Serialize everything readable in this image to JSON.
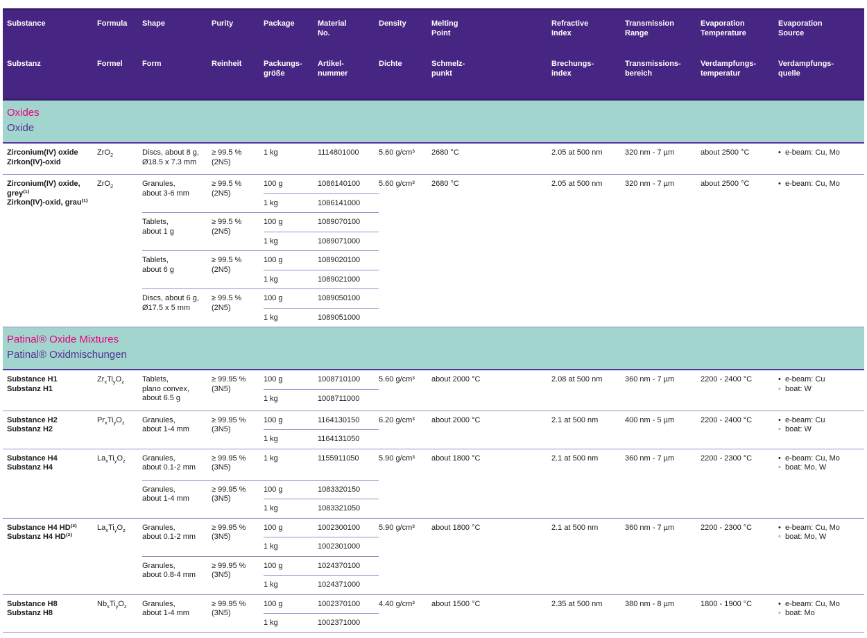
{
  "colors": {
    "header_bg": "#472582",
    "header_border": "#3a1e6e",
    "section_bg": "#a3d5cf",
    "section_title_en": "#e6007e",
    "section_title_de": "#503291",
    "row_line": "#a287c8",
    "section_line": "#5935a3",
    "header_text": "#ffffff",
    "body_text": "#1a1a1a"
  },
  "header": {
    "columns": [
      {
        "id": "substance",
        "w": "w-substance",
        "en": [
          "Substance"
        ],
        "de": [
          "Substanz"
        ]
      },
      {
        "id": "formula",
        "w": "w-formula",
        "en": [
          "Formula"
        ],
        "de": [
          "Formel"
        ]
      },
      {
        "id": "shape",
        "w": "w-shape",
        "en": [
          "Shape"
        ],
        "de": [
          "Form"
        ]
      },
      {
        "id": "purity",
        "w": "w-purity",
        "en": [
          "Purity"
        ],
        "de": [
          "Reinheit"
        ]
      },
      {
        "id": "package",
        "w": "w-size",
        "en": [
          "Package"
        ],
        "de": [
          "Packungs-",
          "größe"
        ]
      },
      {
        "id": "material-no",
        "w": "w-no",
        "en": [
          "Material",
          "No."
        ],
        "de": [
          "Artikel-",
          "nummer"
        ]
      },
      {
        "id": "density",
        "w": "w-density",
        "en": [
          "Density"
        ],
        "de": [
          "Dichte"
        ]
      },
      {
        "id": "melting-point",
        "w": "w-melting",
        "en": [
          "Melting",
          "Point"
        ],
        "de": [
          "Schmelz-",
          "punkt"
        ]
      },
      {
        "id": "refractive-index",
        "w": "w-refr",
        "en": [
          "Refractive",
          "Index"
        ],
        "de": [
          "Brechungs-",
          "index"
        ]
      },
      {
        "id": "transmission-range",
        "w": "w-trans",
        "en": [
          "Transmission",
          "Range"
        ],
        "de": [
          "Transmissions-",
          "bereich"
        ]
      },
      {
        "id": "evaporation-temperature",
        "w": "w-evapt",
        "en": [
          "Evaporation",
          "Temperature"
        ],
        "de": [
          "Verdampfungs-",
          "temperatur"
        ]
      },
      {
        "id": "evaporation-source",
        "w": "w-evaps",
        "en": [
          "Evaporation",
          "Source"
        ],
        "de": [
          "Verdampfungs-",
          "quelle"
        ]
      }
    ]
  },
  "sections": [
    {
      "title_en": "Oxides",
      "title_de": "Oxide",
      "rows": [
        {
          "name_en": "Zirconium(IV) oxide",
          "name_de": "Zirkon(IV)-oxid",
          "formula": [
            {
              "t": "ZrO",
              "s": "2"
            }
          ],
          "groups": [
            {
              "shape": [
                "Discs, about 8 g,",
                "Ø18.5 x 7.3 mm"
              ],
              "purity": [
                "≥ 99.5 %",
                "(2N5)"
              ],
              "packages": [
                {
                  "size": "1 kg",
                  "no": "1114801000"
                }
              ]
            }
          ],
          "density": "5.60 g/cm³",
          "melting": "2680 °C",
          "refractive": "2.05 at 500 nm",
          "transmission": "320 nm - 7 µm",
          "evap_temp": "about 2500 °C",
          "sources": [
            {
              "b": "•",
              "t": "e-beam: Cu, Mo"
            }
          ]
        },
        {
          "name_en": "Zirconium(IV) oxide, grey⁽¹⁾",
          "name_de": "Zirkon(IV)-oxid, grau⁽¹⁾",
          "formula": [
            {
              "t": "ZrO",
              "s": "2"
            }
          ],
          "groups": [
            {
              "shape": [
                "Granules,",
                "about 3-6 mm"
              ],
              "purity": [
                "≥ 99.5 %",
                "(2N5)"
              ],
              "packages": [
                {
                  "size": "100 g",
                  "no": "1086140100"
                },
                {
                  "size": "1 kg",
                  "no": "1086141000"
                }
              ]
            },
            {
              "shape": [
                "Tablets,",
                "about 1 g"
              ],
              "purity": [
                "≥ 99.5 %",
                "(2N5)"
              ],
              "packages": [
                {
                  "size": "100 g",
                  "no": "1089070100"
                },
                {
                  "size": "1 kg",
                  "no": "1089071000"
                }
              ]
            },
            {
              "shape": [
                "Tablets,",
                "about 6 g"
              ],
              "purity": [
                "≥ 99.5 %",
                "(2N5)"
              ],
              "packages": [
                {
                  "size": "100 g",
                  "no": "1089020100"
                },
                {
                  "size": "1 kg",
                  "no": "1089021000"
                }
              ]
            },
            {
              "shape": [
                "Discs, about 6 g,",
                "Ø17.5 x 5 mm"
              ],
              "purity": [
                "≥ 99.5 %",
                "(2N5)"
              ],
              "packages": [
                {
                  "size": "100 g",
                  "no": "1089050100"
                },
                {
                  "size": "1 kg",
                  "no": "1089051000"
                }
              ]
            }
          ],
          "density": "5.60 g/cm³",
          "melting": "2680 °C",
          "refractive": "2.05 at 500 nm",
          "transmission": "320 nm - 7 µm",
          "evap_temp": "about 2500 °C",
          "sources": [
            {
              "b": "•",
              "t": "e-beam: Cu, Mo"
            }
          ]
        }
      ]
    },
    {
      "title_en": "Patinal® Oxide Mixtures",
      "title_de": "Patinal® Oxidmischungen",
      "rows": [
        {
          "name_en": "Substance H1",
          "name_de": "Substanz H1",
          "formula": [
            {
              "t": "Zr",
              "s": "x"
            },
            {
              "t": "Ti",
              "s": "y"
            },
            {
              "t": "O",
              "s": "z"
            }
          ],
          "groups": [
            {
              "shape": [
                "Tablets,",
                "plano convex,",
                "about 6.5 g"
              ],
              "purity": [
                "≥ 99.95 %",
                "(3N5)"
              ],
              "packages": [
                {
                  "size": "100 g",
                  "no": "1008710100"
                },
                {
                  "size": "1 kg",
                  "no": "1008711000"
                }
              ]
            }
          ],
          "density": "5.60 g/cm³",
          "melting": "about 2000 °C",
          "refractive": "2.08 at 500 nm",
          "transmission": "360 nm - 7 µm",
          "evap_temp": "2200 - 2400 °C",
          "sources": [
            {
              "b": "•",
              "t": "e-beam: Cu"
            },
            {
              "b": "◦",
              "t": "boat: W"
            }
          ]
        },
        {
          "name_en": "Substance H2",
          "name_de": "Substanz H2",
          "formula": [
            {
              "t": "Pr",
              "s": "x"
            },
            {
              "t": "Ti",
              "s": "y"
            },
            {
              "t": "O",
              "s": "z"
            }
          ],
          "groups": [
            {
              "shape": [
                "Granules,",
                "about 1-4 mm"
              ],
              "purity": [
                "≥ 99.95 %",
                "(3N5)"
              ],
              "packages": [
                {
                  "size": "100 g",
                  "no": "1164130150"
                },
                {
                  "size": "1 kg",
                  "no": "1164131050"
                }
              ]
            }
          ],
          "density": "6.20 g/cm³",
          "melting": "about 2000 °C",
          "refractive": "2.1 at 500 nm",
          "transmission": "400 nm - 5 µm",
          "evap_temp": "2200 - 2400 °C",
          "sources": [
            {
              "b": "•",
              "t": "e-beam: Cu"
            },
            {
              "b": "◦",
              "t": "boat: W"
            }
          ]
        },
        {
          "name_en": "Substance H4",
          "name_de": "Substanz H4",
          "formula": [
            {
              "t": "La",
              "s": "x"
            },
            {
              "t": "Ti",
              "s": "y"
            },
            {
              "t": "O",
              "s": "z"
            }
          ],
          "groups": [
            {
              "shape": [
                "Granules,",
                "about 0.1-2 mm"
              ],
              "purity": [
                "≥ 99.95 %",
                "(3N5)"
              ],
              "packages": [
                {
                  "size": "1 kg",
                  "no": "1155911050"
                }
              ]
            },
            {
              "shape": [
                "Granules,",
                "about 1-4 mm"
              ],
              "purity": [
                "≥ 99.95 %",
                "(3N5)"
              ],
              "packages": [
                {
                  "size": "100 g",
                  "no": "1083320150"
                },
                {
                  "size": "1 kg",
                  "no": "1083321050"
                }
              ]
            }
          ],
          "density": "5.90 g/cm³",
          "melting": "about 1800 °C",
          "refractive": "2.1 at 500 nm",
          "transmission": "360 nm - 7 µm",
          "evap_temp": "2200 - 2300 °C",
          "sources": [
            {
              "b": "•",
              "t": "e-beam: Cu, Mo"
            },
            {
              "b": "◦",
              "t": "boat: Mo, W"
            }
          ]
        },
        {
          "name_en": "Substance H4 HD⁽²⁾",
          "name_de": "Substanz H4 HD⁽²⁾",
          "formula": [
            {
              "t": "La",
              "s": "x"
            },
            {
              "t": "Ti",
              "s": "y"
            },
            {
              "t": "O",
              "s": "z"
            }
          ],
          "groups": [
            {
              "shape": [
                "Granules,",
                "about 0.1-2 mm"
              ],
              "purity": [
                "≥ 99.95 %",
                "(3N5)"
              ],
              "packages": [
                {
                  "size": "100 g",
                  "no": "1002300100"
                },
                {
                  "size": "1 kg",
                  "no": "1002301000"
                }
              ]
            },
            {
              "shape": [
                "Granules,",
                "about 0.8-4 mm"
              ],
              "purity": [
                "≥ 99.95 %",
                "(3N5)"
              ],
              "packages": [
                {
                  "size": "100 g",
                  "no": "1024370100"
                },
                {
                  "size": "1 kg",
                  "no": "1024371000"
                }
              ]
            }
          ],
          "density": "5.90 g/cm³",
          "melting": "about 1800 °C",
          "refractive": "2.1 at 500 nm",
          "transmission": "360 nm - 7 µm",
          "evap_temp": "2200 - 2300 °C",
          "sources": [
            {
              "b": "•",
              "t": "e-beam: Cu, Mo"
            },
            {
              "b": "◦",
              "t": "boat: Mo, W"
            }
          ]
        },
        {
          "name_en": "Substance H8",
          "name_de": "Substanz H8",
          "formula": [
            {
              "t": "Nb",
              "s": "x"
            },
            {
              "t": "Ti",
              "s": "y"
            },
            {
              "t": "O",
              "s": "z"
            }
          ],
          "groups": [
            {
              "shape": [
                "Granules,",
                "about 1-4 mm"
              ],
              "purity": [
                "≥ 99.95 %",
                "(3N5)"
              ],
              "packages": [
                {
                  "size": "100 g",
                  "no": "1002370100"
                },
                {
                  "size": "1 kg",
                  "no": "1002371000"
                }
              ]
            }
          ],
          "density": "4.40 g/cm³",
          "melting": "about 1500 °C",
          "refractive": "2.35 at 500 nm",
          "transmission": "380 nm - 8 µm",
          "evap_temp": "1800 - 1900 °C",
          "sources": [
            {
              "b": "•",
              "t": "e-beam: Cu, Mo"
            },
            {
              "b": "◦",
              "t": "boat: Mo"
            }
          ]
        }
      ]
    }
  ]
}
